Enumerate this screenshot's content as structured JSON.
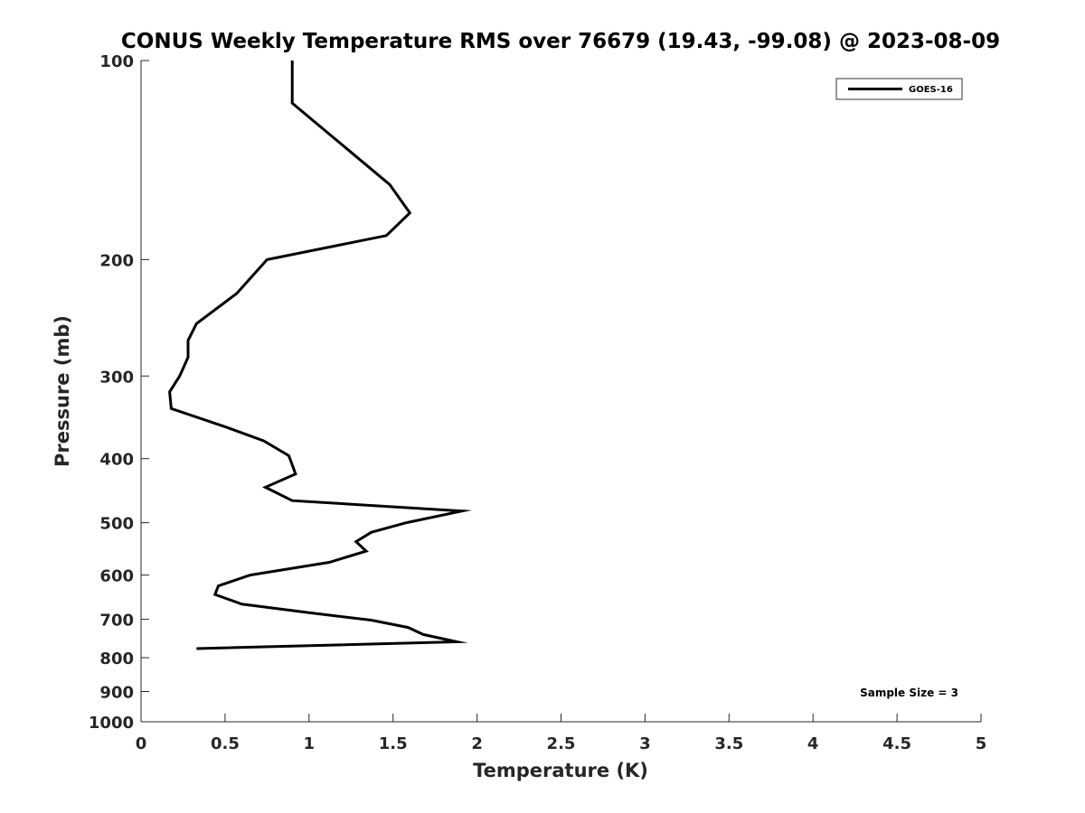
{
  "chart_data": {
    "type": "line",
    "title": "CONUS Weekly Temperature RMS over 76679 (19.43, -99.08) @ 2023-08-09",
    "xlabel": "Temperature (K)",
    "ylabel": "Pressure (mb)",
    "xlim": [
      0,
      5
    ],
    "ylim": [
      100,
      1000
    ],
    "y_scale": "log",
    "y_reversed": true,
    "xticks": [
      0,
      0.5,
      1,
      1.5,
      2,
      2.5,
      3,
      3.5,
      4,
      4.5,
      5
    ],
    "xtick_labels": [
      "0",
      "0.5",
      "1",
      "1.5",
      "2",
      "2.5",
      "3",
      "3.5",
      "4",
      "4.5",
      "5"
    ],
    "yticks": [
      100,
      200,
      300,
      400,
      500,
      600,
      700,
      800,
      900,
      1000
    ],
    "ytick_labels": [
      "100",
      "200",
      "300",
      "400",
      "500",
      "600",
      "700",
      "800",
      "900",
      "1000"
    ],
    "grid": false,
    "legend_position": "top-right",
    "series": [
      {
        "name": "GOES-16",
        "color": "#000000",
        "points": [
          [
            0.9,
            100
          ],
          [
            0.9,
            116
          ],
          [
            1.48,
            154
          ],
          [
            1.6,
            170
          ],
          [
            1.46,
            184
          ],
          [
            0.75,
            200
          ],
          [
            0.57,
            225
          ],
          [
            0.33,
            250
          ],
          [
            0.28,
            265
          ],
          [
            0.28,
            281
          ],
          [
            0.23,
            300
          ],
          [
            0.17,
            317
          ],
          [
            0.18,
            336
          ],
          [
            0.5,
            358
          ],
          [
            0.73,
            376
          ],
          [
            0.88,
            396
          ],
          [
            0.92,
            422
          ],
          [
            0.74,
            442
          ],
          [
            0.9,
            463
          ],
          [
            1.91,
            480
          ],
          [
            1.58,
            500
          ],
          [
            1.37,
            517
          ],
          [
            1.28,
            534
          ],
          [
            1.34,
            552
          ],
          [
            1.12,
            574
          ],
          [
            0.65,
            600
          ],
          [
            0.46,
            623
          ],
          [
            0.44,
            642
          ],
          [
            0.6,
            664
          ],
          [
            1.0,
            684
          ],
          [
            1.37,
            702
          ],
          [
            1.59,
            720
          ],
          [
            1.68,
            738
          ],
          [
            1.88,
            757
          ],
          [
            0.33,
            775
          ]
        ]
      }
    ],
    "annotation": "Sample Size = 3"
  }
}
